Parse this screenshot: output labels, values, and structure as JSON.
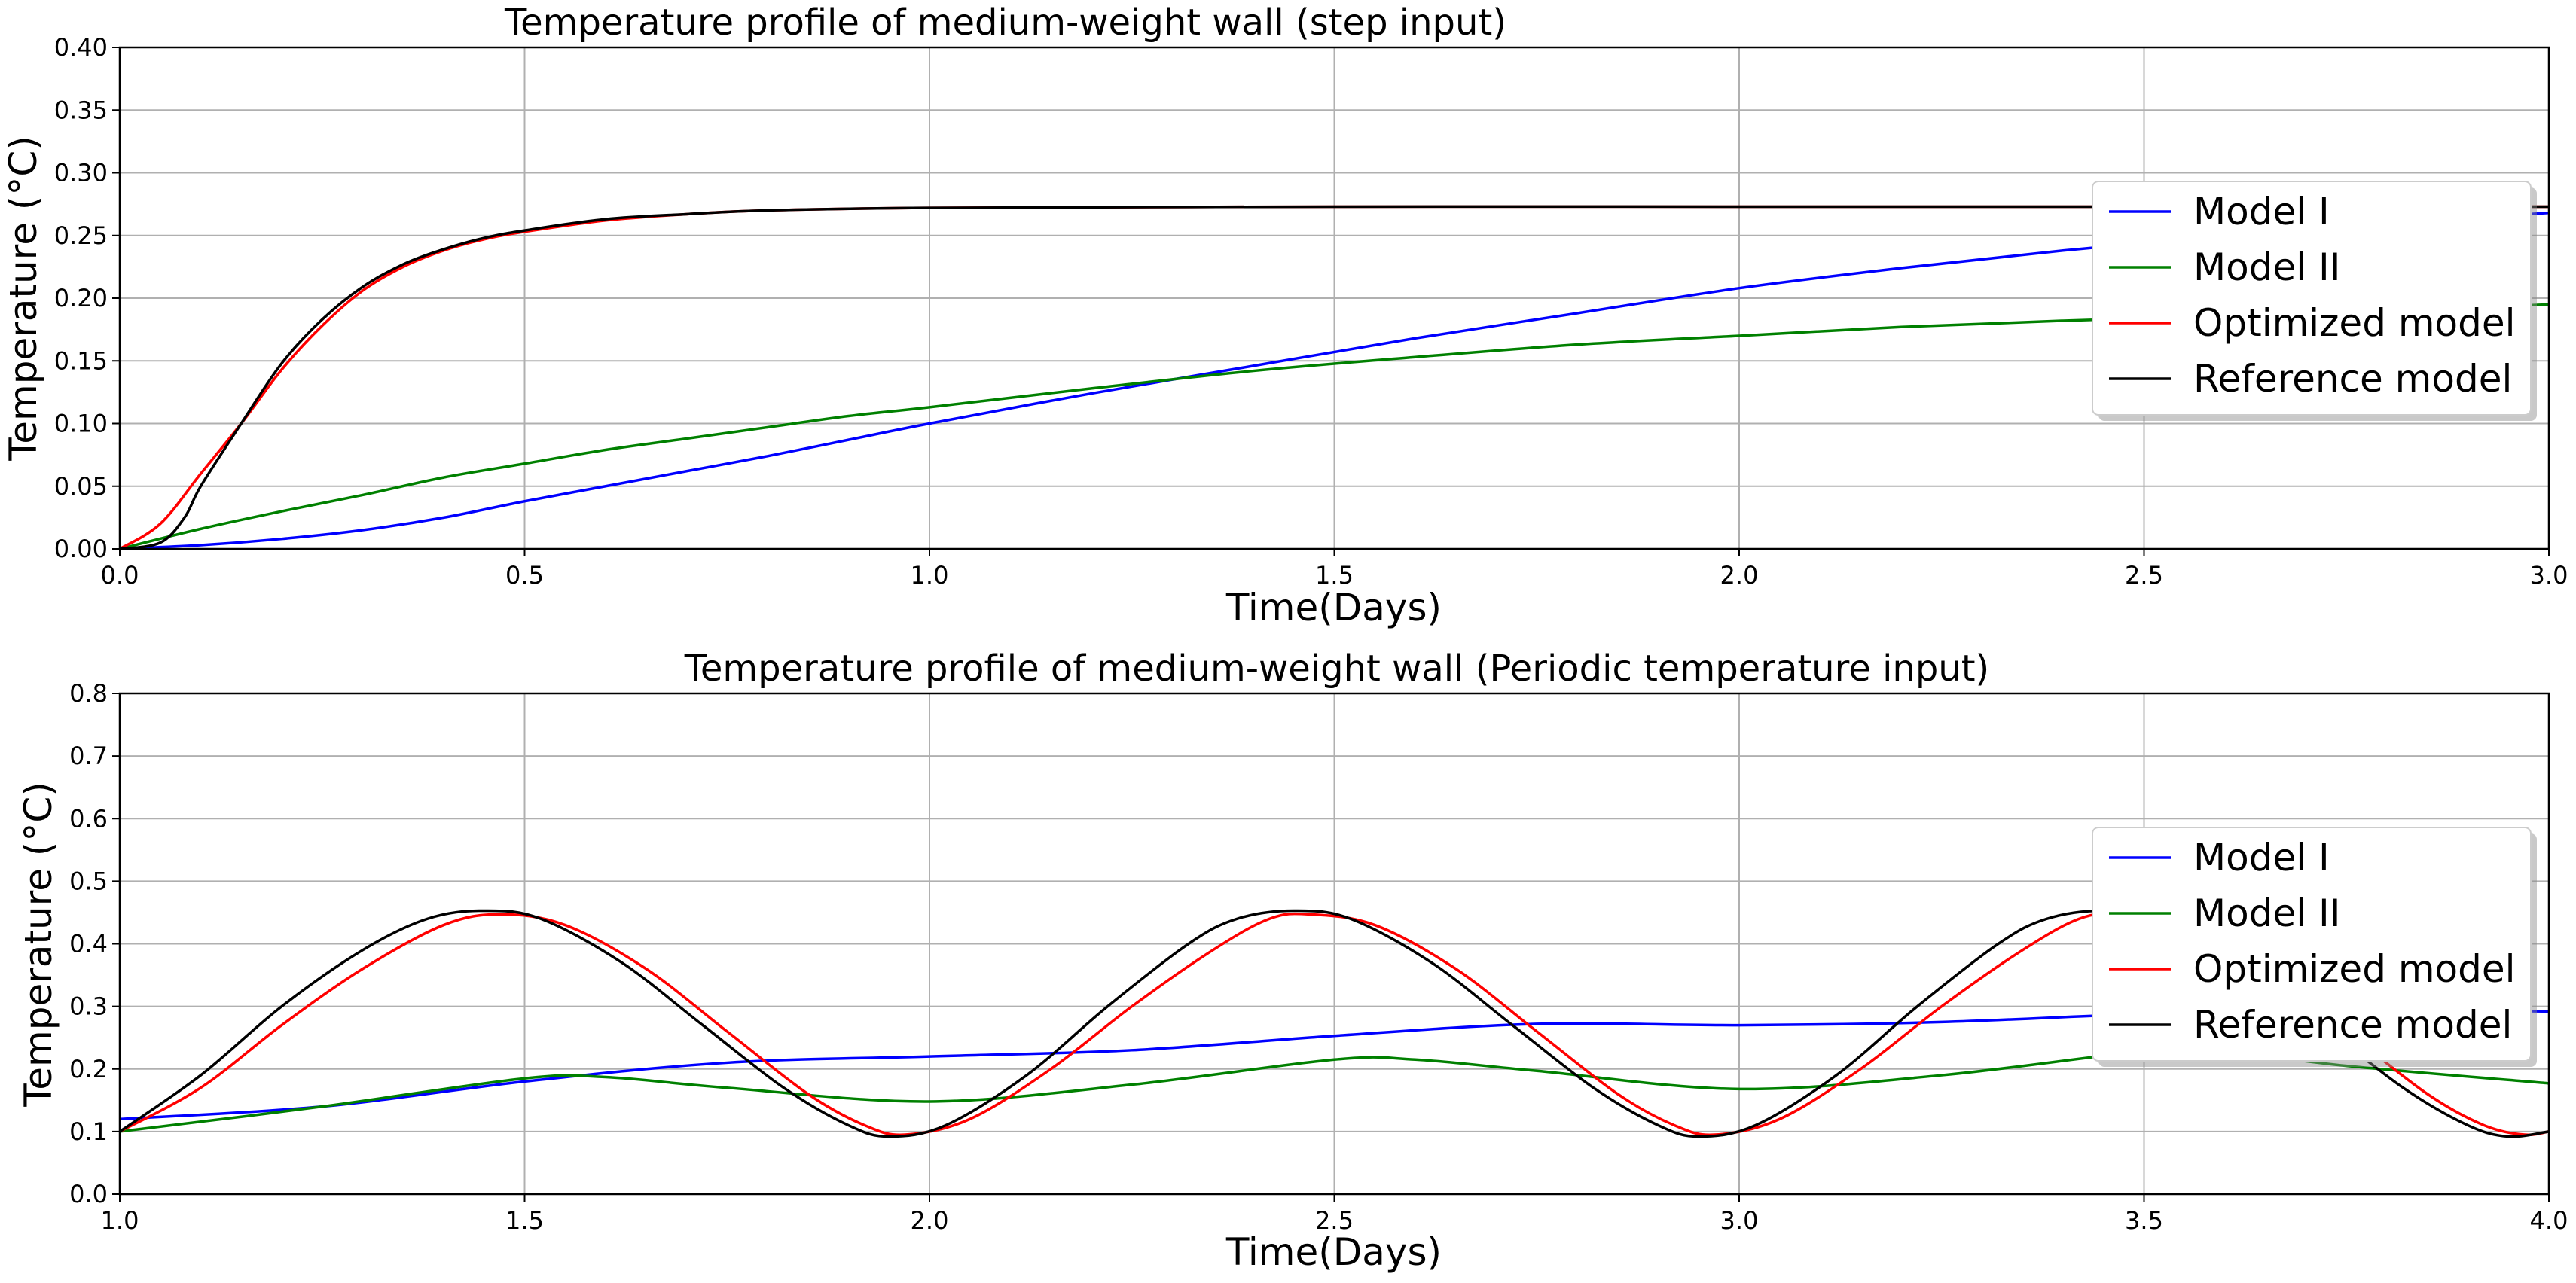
{
  "chart_data": [
    {
      "type": "line",
      "title": "Temperature profile of medium-weight wall (step input)",
      "xlabel": "Time(Days)",
      "ylabel": "Temperature (°C)",
      "xlim": [
        0.0,
        3.0
      ],
      "ylim": [
        0.0,
        0.4
      ],
      "xticks": [
        "0.0",
        "0.5",
        "1.0",
        "1.5",
        "2.0",
        "2.5",
        "3.0"
      ],
      "yticks": [
        "0.00",
        "0.05",
        "0.10",
        "0.15",
        "0.20",
        "0.25",
        "0.30",
        "0.35",
        "0.40"
      ],
      "grid": true,
      "legend_position": "center-right",
      "series": [
        {
          "name": "Model I",
          "color": "#0000ff",
          "x": [
            0,
            0.1,
            0.2,
            0.3,
            0.4,
            0.5,
            0.6,
            0.7,
            0.8,
            0.9,
            1.0,
            1.2,
            1.4,
            1.6,
            1.8,
            2.0,
            2.2,
            2.4,
            2.6,
            2.8,
            3.0
          ],
          "y": [
            0,
            0.003,
            0.008,
            0.015,
            0.025,
            0.038,
            0.05,
            0.062,
            0.074,
            0.087,
            0.1,
            0.124,
            0.146,
            0.168,
            0.188,
            0.208,
            0.224,
            0.238,
            0.25,
            0.26,
            0.268
          ]
        },
        {
          "name": "Model II",
          "color": "#008000",
          "x": [
            0,
            0.1,
            0.2,
            0.3,
            0.4,
            0.5,
            0.6,
            0.7,
            0.8,
            0.9,
            1.0,
            1.2,
            1.4,
            1.6,
            1.8,
            2.0,
            2.2,
            2.4,
            2.6,
            2.8,
            3.0
          ],
          "y": [
            0,
            0.016,
            0.03,
            0.043,
            0.057,
            0.068,
            0.079,
            0.088,
            0.097,
            0.106,
            0.113,
            0.128,
            0.142,
            0.153,
            0.163,
            0.17,
            0.177,
            0.182,
            0.186,
            0.19,
            0.195
          ]
        },
        {
          "name": "Optimized model",
          "color": "#ff0000",
          "x": [
            0,
            0.05,
            0.1,
            0.15,
            0.2,
            0.25,
            0.3,
            0.35,
            0.4,
            0.45,
            0.5,
            0.6,
            0.7,
            0.8,
            1.0,
            1.5,
            2.0,
            2.5,
            3.0
          ],
          "y": [
            0,
            0.02,
            0.06,
            0.1,
            0.143,
            0.178,
            0.206,
            0.225,
            0.238,
            0.247,
            0.253,
            0.262,
            0.267,
            0.27,
            0.272,
            0.273,
            0.273,
            0.273,
            0.273
          ]
        },
        {
          "name": "Reference model",
          "color": "#000000",
          "x": [
            0,
            0.05,
            0.08,
            0.1,
            0.15,
            0.2,
            0.25,
            0.3,
            0.35,
            0.4,
            0.45,
            0.5,
            0.6,
            0.7,
            0.8,
            1.0,
            1.5,
            2.0,
            2.5,
            3.0
          ],
          "y": [
            0,
            0.005,
            0.025,
            0.05,
            0.1,
            0.148,
            0.183,
            0.209,
            0.227,
            0.239,
            0.248,
            0.254,
            0.263,
            0.267,
            0.27,
            0.272,
            0.273,
            0.273,
            0.273,
            0.273
          ]
        }
      ]
    },
    {
      "type": "line",
      "title": "Temperature profile of medium-weight wall (Periodic temperature input)",
      "xlabel": "Time(Days)",
      "ylabel": "Temperature (°C)",
      "xlim": [
        1.0,
        4.0
      ],
      "ylim": [
        0.0,
        0.8
      ],
      "xticks": [
        "1.0",
        "1.5",
        "2.0",
        "2.5",
        "3.0",
        "3.5",
        "4.0"
      ],
      "yticks": [
        "0.0",
        "0.1",
        "0.2",
        "0.3",
        "0.4",
        "0.5",
        "0.6",
        "0.7",
        "0.8"
      ],
      "grid": true,
      "legend_position": "center-right",
      "series": [
        {
          "name": "Model I",
          "color": "#0000ff",
          "x": [
            1.0,
            1.25,
            1.5,
            1.75,
            2.0,
            2.25,
            2.5,
            2.75,
            3.0,
            3.25,
            3.5,
            3.75,
            4.0
          ],
          "y": [
            0.12,
            0.14,
            0.18,
            0.21,
            0.22,
            0.23,
            0.253,
            0.272,
            0.27,
            0.275,
            0.288,
            0.295,
            0.292
          ]
        },
        {
          "name": "Model II",
          "color": "#008000",
          "x": [
            1.0,
            1.25,
            1.5,
            1.6,
            1.75,
            2.0,
            2.25,
            2.5,
            2.6,
            2.75,
            3.0,
            3.25,
            3.5,
            3.6,
            3.75,
            4.0
          ],
          "y": [
            0.1,
            0.14,
            0.185,
            0.187,
            0.17,
            0.148,
            0.175,
            0.215,
            0.215,
            0.197,
            0.168,
            0.19,
            0.228,
            0.228,
            0.205,
            0.177
          ]
        },
        {
          "name": "Optimized model",
          "color": "#ff0000",
          "x": [
            1.0,
            1.1,
            1.2,
            1.3,
            1.4,
            1.47,
            1.55,
            1.65,
            1.75,
            1.85,
            1.92,
            1.97,
            2.05,
            2.15,
            2.25,
            2.35,
            2.42,
            2.47,
            2.55,
            2.65,
            2.75,
            2.85,
            2.92,
            2.97,
            3.05,
            3.15,
            3.25,
            3.35,
            3.42,
            3.47,
            3.55,
            3.65,
            3.75,
            3.85,
            3.92,
            3.97,
            4.0
          ],
          "y": [
            0.1,
            0.17,
            0.27,
            0.36,
            0.43,
            0.447,
            0.43,
            0.36,
            0.26,
            0.16,
            0.11,
            0.095,
            0.12,
            0.2,
            0.3,
            0.39,
            0.44,
            0.447,
            0.43,
            0.36,
            0.26,
            0.16,
            0.11,
            0.095,
            0.12,
            0.2,
            0.3,
            0.39,
            0.44,
            0.447,
            0.43,
            0.36,
            0.26,
            0.16,
            0.11,
            0.095,
            0.1
          ]
        },
        {
          "name": "Reference model",
          "color": "#000000",
          "x": [
            1.0,
            1.1,
            1.2,
            1.3,
            1.38,
            1.45,
            1.52,
            1.62,
            1.72,
            1.82,
            1.9,
            1.95,
            2.02,
            2.12,
            2.22,
            2.32,
            2.38,
            2.45,
            2.52,
            2.62,
            2.72,
            2.82,
            2.9,
            2.95,
            3.02,
            3.12,
            3.22,
            3.32,
            3.38,
            3.45,
            3.52,
            3.62,
            3.72,
            3.82,
            3.9,
            3.95,
            4.0
          ],
          "y": [
            0.1,
            0.19,
            0.3,
            0.39,
            0.44,
            0.453,
            0.44,
            0.37,
            0.27,
            0.17,
            0.11,
            0.092,
            0.11,
            0.19,
            0.3,
            0.4,
            0.44,
            0.453,
            0.44,
            0.37,
            0.27,
            0.17,
            0.11,
            0.092,
            0.11,
            0.19,
            0.3,
            0.4,
            0.44,
            0.453,
            0.44,
            0.37,
            0.27,
            0.17,
            0.11,
            0.092,
            0.1
          ]
        }
      ]
    }
  ]
}
